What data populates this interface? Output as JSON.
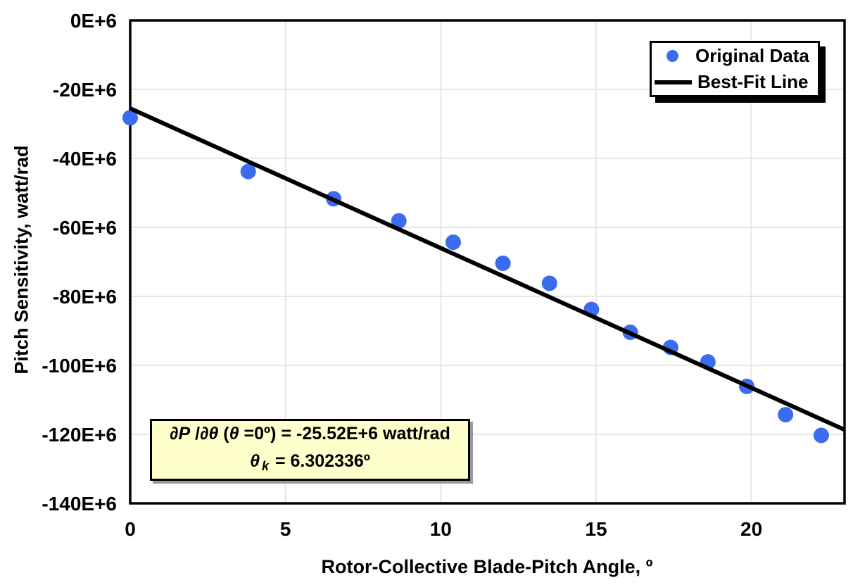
{
  "chart_data": {
    "type": "scatter",
    "title": "",
    "xlabel": "Rotor-Collective Blade-Pitch Angle, º",
    "ylabel": "Pitch Sensitivity, watt/rad",
    "xlim": [
      0,
      23
    ],
    "ylim": [
      -140,
      0
    ],
    "x_ticks": [
      0,
      5,
      10,
      15,
      20
    ],
    "y_ticks": [
      0,
      -20,
      -40,
      -60,
      -80,
      -100,
      -120,
      -140
    ],
    "y_tick_suffix": "E+6",
    "grid": true,
    "grid_color": "#e6e6e6",
    "legend_position": "top-right",
    "series": [
      {
        "name": "Original Data",
        "type": "scatter",
        "color": "#3b6cf0",
        "x": [
          0,
          3.8,
          6.55,
          8.65,
          10.4,
          12.0,
          13.5,
          14.85,
          16.1,
          17.4,
          18.6,
          19.85,
          21.1,
          22.25
        ],
        "y": [
          -28.2,
          -43.8,
          -51.7,
          -58.1,
          -64.3,
          -70.4,
          -76.2,
          -83.8,
          -90.4,
          -94.8,
          -99.0,
          -106.1,
          -114.3,
          -120.3
        ]
      },
      {
        "name": "Best-Fit Line",
        "type": "line",
        "color": "#000000",
        "x": [
          0,
          23
        ],
        "y": [
          -25.52,
          -118.66
        ]
      }
    ]
  },
  "annotation": {
    "bg_color": "#ffffcc",
    "line1": {
      "p1": "∂P",
      "p2": " /",
      "p3": "∂θ",
      "p4": " (",
      "p5": "θ",
      "p6": " =0º) = -25.52E+6 watt/rad"
    },
    "line2": {
      "theta": "θ",
      "sub": "k",
      "rest": " = 6.302336º"
    }
  }
}
